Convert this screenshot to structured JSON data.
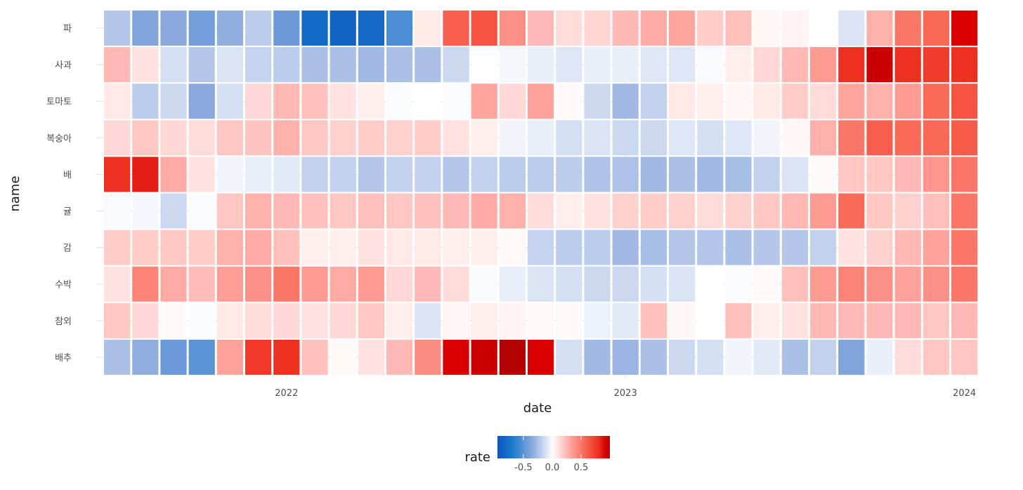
{
  "chart_data": {
    "type": "heatmap",
    "xlabel": "date",
    "ylabel": "name",
    "x_tick_labels": [
      "2022",
      "2023",
      "2024"
    ],
    "x_tick_indices": [
      6.5,
      18.5,
      30.5
    ],
    "dates": [
      "2021-07",
      "2021-08",
      "2021-09",
      "2021-10",
      "2021-11",
      "2021-12",
      "2022-01",
      "2022-02",
      "2022-03",
      "2022-04",
      "2022-05",
      "2022-06",
      "2022-07",
      "2022-08",
      "2022-09",
      "2022-10",
      "2022-11",
      "2022-12",
      "2023-01",
      "2023-02",
      "2023-03",
      "2023-04",
      "2023-05",
      "2023-06",
      "2023-07",
      "2023-08",
      "2023-09",
      "2023-10",
      "2023-11",
      "2023-12",
      "2024-01"
    ],
    "rows": [
      "파",
      "사과",
      "토마토",
      "복숭아",
      "배",
      "귤",
      "감",
      "수박",
      "참외",
      "배추"
    ],
    "values": [
      [
        -0.22,
        -0.38,
        -0.35,
        -0.42,
        -0.33,
        -0.2,
        -0.45,
        -0.8,
        -0.85,
        -0.82,
        -0.55,
        0.08,
        0.6,
        0.65,
        0.4,
        0.25,
        0.12,
        0.15,
        0.25,
        0.3,
        0.32,
        0.18,
        0.22,
        0.03,
        0.04,
        0.0,
        -0.1,
        0.28,
        0.5,
        0.56,
        0.92
      ],
      [
        0.25,
        0.1,
        -0.12,
        -0.22,
        -0.1,
        -0.17,
        -0.2,
        -0.25,
        -0.25,
        -0.28,
        -0.25,
        -0.25,
        -0.15,
        0.0,
        -0.03,
        -0.06,
        -0.09,
        -0.06,
        -0.06,
        -0.09,
        -0.09,
        -0.02,
        0.06,
        0.14,
        0.25,
        0.36,
        0.8,
        0.95,
        0.8,
        0.75,
        0.8
      ],
      [
        0.08,
        -0.2,
        -0.15,
        -0.35,
        -0.12,
        0.14,
        0.25,
        0.22,
        0.1,
        0.06,
        -0.01,
        0.0,
        -0.01,
        0.32,
        0.14,
        0.33,
        0.02,
        -0.15,
        -0.28,
        -0.18,
        0.08,
        0.06,
        0.03,
        0.08,
        0.18,
        0.12,
        0.32,
        0.28,
        0.36,
        0.55,
        0.65
      ],
      [
        0.14,
        0.2,
        0.14,
        0.12,
        0.2,
        0.21,
        0.28,
        0.2,
        0.16,
        0.18,
        0.16,
        0.18,
        0.1,
        0.06,
        -0.04,
        -0.06,
        -0.12,
        -0.1,
        -0.15,
        -0.15,
        -0.09,
        -0.12,
        -0.09,
        -0.04,
        0.03,
        0.28,
        0.5,
        0.6,
        0.55,
        0.56,
        0.62
      ],
      [
        0.8,
        0.85,
        0.3,
        0.1,
        -0.04,
        -0.06,
        -0.08,
        -0.18,
        -0.18,
        -0.22,
        -0.18,
        -0.18,
        -0.22,
        -0.18,
        -0.2,
        -0.2,
        -0.2,
        -0.24,
        -0.24,
        -0.28,
        -0.25,
        -0.28,
        -0.26,
        -0.18,
        -0.1,
        0.02,
        0.2,
        0.2,
        0.25,
        0.38,
        0.5
      ],
      [
        -0.02,
        -0.03,
        -0.15,
        -0.01,
        0.2,
        0.28,
        0.25,
        0.22,
        0.2,
        0.22,
        0.2,
        0.22,
        0.25,
        0.3,
        0.28,
        0.12,
        0.06,
        0.1,
        0.16,
        0.18,
        0.16,
        0.12,
        0.16,
        0.2,
        0.25,
        0.36,
        0.55,
        0.2,
        0.16,
        0.22,
        0.5
      ],
      [
        0.18,
        0.18,
        0.2,
        0.18,
        0.28,
        0.3,
        0.22,
        0.06,
        0.06,
        0.1,
        0.08,
        0.08,
        0.06,
        0.06,
        0.02,
        -0.17,
        -0.2,
        -0.2,
        -0.28,
        -0.26,
        -0.22,
        -0.22,
        -0.25,
        -0.22,
        -0.22,
        -0.18,
        0.1,
        0.16,
        0.25,
        0.33,
        0.5
      ],
      [
        0.1,
        0.45,
        0.3,
        0.24,
        0.35,
        0.4,
        0.5,
        0.36,
        0.3,
        0.36,
        0.14,
        0.25,
        0.12,
        -0.02,
        -0.06,
        -0.1,
        -0.12,
        -0.15,
        -0.15,
        -0.12,
        -0.1,
        0.0,
        -0.01,
        0.02,
        0.22,
        0.36,
        0.45,
        0.4,
        0.33,
        0.4,
        0.5
      ],
      [
        0.2,
        0.14,
        0.02,
        -0.01,
        0.08,
        0.12,
        0.14,
        0.1,
        0.14,
        0.2,
        0.06,
        -0.1,
        0.03,
        0.06,
        0.04,
        0.02,
        0.02,
        -0.05,
        -0.08,
        0.22,
        0.03,
        0.0,
        0.22,
        0.06,
        0.1,
        0.25,
        0.25,
        0.25,
        0.25,
        0.2,
        0.25
      ],
      [
        -0.25,
        -0.33,
        -0.45,
        -0.5,
        0.33,
        0.76,
        0.8,
        0.22,
        0.02,
        0.1,
        0.25,
        0.42,
        0.92,
        0.95,
        1.0,
        0.92,
        -0.12,
        -0.28,
        -0.3,
        -0.25,
        -0.15,
        -0.12,
        -0.04,
        -0.08,
        -0.25,
        -0.18,
        -0.38,
        -0.06,
        0.12,
        0.2,
        0.2
      ]
    ],
    "colorbar": {
      "title": "rate",
      "tick_labels": [
        "-0.5",
        "0.0",
        "0.5"
      ],
      "tick_values": [
        -0.5,
        0.0,
        0.5
      ],
      "range": [
        -0.95,
        1.0
      ]
    },
    "colors": {
      "low": "#0b5ec4",
      "mid": "#ffffff",
      "high": "#b30000",
      "grid": "#e5e5e5",
      "background": "#ffffff"
    },
    "legend_position": "bottom",
    "grid": true
  }
}
